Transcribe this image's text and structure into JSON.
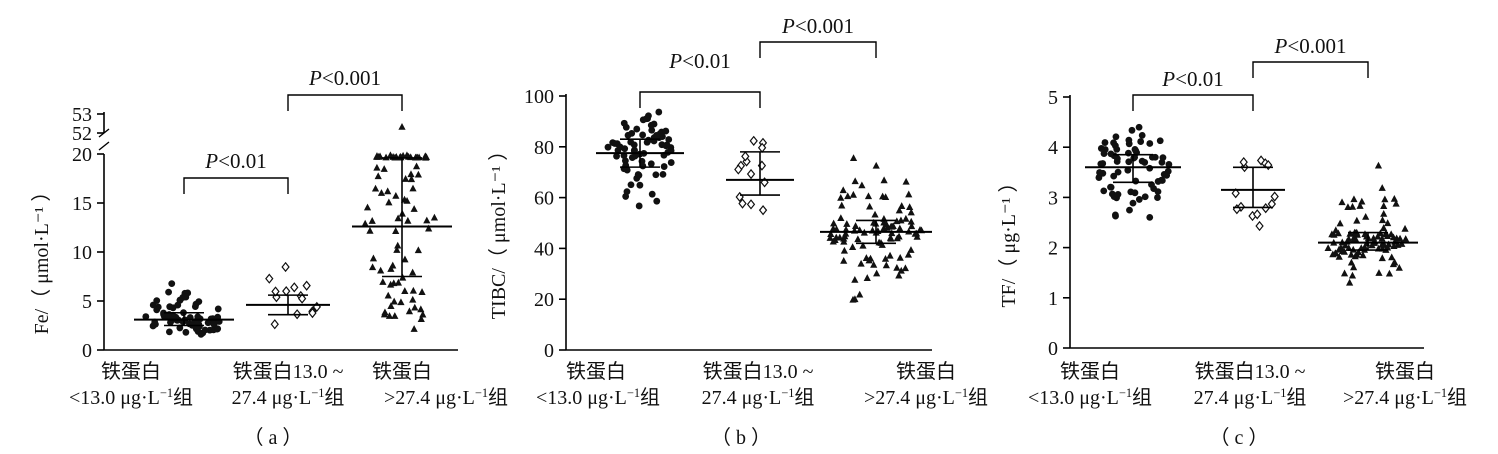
{
  "chart_data": [
    {
      "type": "scatter",
      "panel_label": "（ a ）",
      "ylabel": "Fe/（ μmol·L⁻¹ ）",
      "ylim": [
        0,
        20
      ],
      "yticks": [
        0,
        5,
        10,
        15,
        20
      ],
      "broken_axis_ticks": [
        "52",
        "53"
      ],
      "categories": [
        {
          "line1": "铁蛋白",
          "line2": "<13.0 μg·L⁻¹组"
        },
        {
          "line1": "铁蛋白13.0 ~",
          "line2": "27.4 μg·L⁻¹组"
        },
        {
          "line1": "铁蛋白",
          "line2": ">27.4 μg·L⁻¹组"
        }
      ],
      "series": [
        {
          "marker": "circle",
          "n": 70,
          "median": 3.1,
          "q1": 2.5,
          "q3": 3.8,
          "min": 1.1,
          "max": 7.4
        },
        {
          "marker": "diamond",
          "n": 14,
          "median": 4.6,
          "q1": 3.6,
          "q3": 5.6,
          "min": 2.1,
          "max": 9.1
        },
        {
          "marker": "triangle",
          "n": 85,
          "median": 12.6,
          "q1": 7.5,
          "q3": 19.6,
          "min": 1.1,
          "max": 19.9
        }
      ],
      "outliers": [
        {
          "group": 3,
          "value_label": "52.2"
        }
      ],
      "brackets": [
        {
          "from": 1,
          "to": 2,
          "label_p": "P",
          "label_rest": "<0.01"
        },
        {
          "from": 2,
          "to": 3,
          "label_p": "P",
          "label_rest": "<0.001"
        }
      ]
    },
    {
      "type": "scatter",
      "panel_label": "（ b ）",
      "ylabel": "TIBC/（ μmol·L⁻¹ ）",
      "ylim": [
        0,
        100
      ],
      "yticks": [
        0,
        20,
        40,
        60,
        80,
        100
      ],
      "categories": [
        {
          "line1": "铁蛋白",
          "line2": "<13.0 μg·L⁻¹组"
        },
        {
          "line1": "铁蛋白13.0 ~",
          "line2": "27.4 μg·L⁻¹组"
        },
        {
          "line1": "铁蛋白",
          "line2": ">27.4 μg·L⁻¹组"
        }
      ],
      "series": [
        {
          "marker": "circle",
          "n": 70,
          "median": 77.5,
          "q1": 72,
          "q3": 83,
          "min": 56,
          "max": 95
        },
        {
          "marker": "diamond",
          "n": 14,
          "median": 67,
          "q1": 61,
          "q3": 78,
          "min": 49,
          "max": 84
        },
        {
          "marker": "triangle",
          "n": 100,
          "median": 46.5,
          "q1": 42,
          "q3": 51,
          "min": 17,
          "max": 79
        }
      ],
      "brackets": [
        {
          "from": 1,
          "to": 2,
          "label_p": "P",
          "label_rest": "<0.01"
        },
        {
          "from": 2,
          "to": 3,
          "label_p": "P",
          "label_rest": "<0.001"
        }
      ]
    },
    {
      "type": "scatter",
      "panel_label": "（ c ）",
      "ylabel": "TF/（ μg·L⁻¹ ）",
      "ylim": [
        0,
        5
      ],
      "yticks": [
        0,
        1,
        2,
        3,
        4,
        5
      ],
      "categories": [
        {
          "line1": "铁蛋白",
          "line2": "<13.0 μg·L⁻¹组"
        },
        {
          "line1": "铁蛋白13.0 ~",
          "line2": "27.4 μg·L⁻¹组"
        },
        {
          "line1": "铁蛋白",
          "line2": ">27.4 μg·L⁻¹组"
        }
      ],
      "series": [
        {
          "marker": "circle",
          "n": 70,
          "median": 3.6,
          "q1": 3.3,
          "q3": 3.85,
          "min": 2.45,
          "max": 4.45
        },
        {
          "marker": "diamond",
          "n": 14,
          "median": 3.15,
          "q1": 2.8,
          "q3": 3.6,
          "min": 2.35,
          "max": 3.9
        },
        {
          "marker": "triangle",
          "n": 100,
          "median": 2.1,
          "q1": 1.95,
          "q3": 2.3,
          "min": 1.2,
          "max": 3.8
        }
      ],
      "brackets": [
        {
          "from": 1,
          "to": 2,
          "label_p": "P",
          "label_rest": "<0.01"
        },
        {
          "from": 2,
          "to": 3,
          "label_p": "P",
          "label_rest": "<0.001"
        }
      ]
    }
  ]
}
